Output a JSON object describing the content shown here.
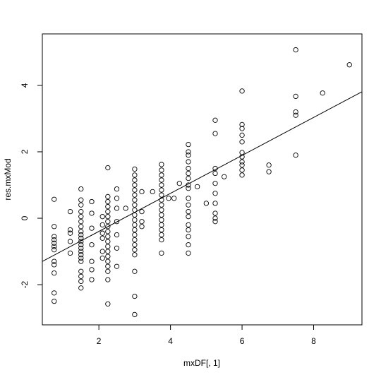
{
  "chart_data": {
    "type": "scatter",
    "x_label": "mxDF[, 1]",
    "y_label": "res.mxMod",
    "xlim": [
      0.42,
      9.35
    ],
    "ylim": [
      -3.21,
      5.55
    ],
    "xticks": [
      2,
      4,
      6,
      8
    ],
    "yticks": [
      -2,
      0,
      2,
      4
    ],
    "color": "#000000",
    "fit": {
      "intercept": -1.54,
      "slope": 0.572
    },
    "x": [
      0.75,
      0.75,
      0.75,
      0.75,
      0.75,
      0.75,
      0.75,
      0.75,
      0.75,
      0.75,
      0.75,
      0.75,
      1.2,
      1.2,
      1.2,
      1.2,
      1.2,
      1.5,
      1.5,
      1.5,
      1.5,
      1.5,
      1.5,
      1.5,
      1.5,
      1.5,
      1.5,
      1.5,
      1.5,
      1.5,
      1.5,
      1.5,
      1.5,
      1.5,
      1.5,
      1.5,
      1.5,
      1.5,
      1.8,
      1.8,
      1.8,
      1.8,
      1.8,
      1.8,
      1.8,
      2.1,
      2.1,
      2.1,
      2.1,
      2.1,
      2.1,
      2.25,
      2.25,
      2.25,
      2.25,
      2.25,
      2.25,
      2.25,
      2.25,
      2.25,
      2.25,
      2.25,
      2.25,
      2.25,
      2.25,
      2.25,
      2.25,
      2.25,
      2.25,
      2.25,
      2.5,
      2.5,
      2.5,
      2.5,
      2.5,
      2.5,
      2.5,
      2.75,
      3,
      3,
      3,
      3,
      3,
      3,
      3,
      3,
      3,
      3,
      3,
      3,
      3,
      3,
      3,
      3,
      3,
      3,
      3,
      3,
      3,
      3.2,
      3.2,
      3.2,
      3.2,
      3.5,
      3.75,
      3.75,
      3.75,
      3.75,
      3.75,
      3.75,
      3.75,
      3.75,
      3.75,
      3.75,
      3.75,
      3.75,
      3.75,
      3.75,
      3.75,
      3.75,
      3.75,
      3.95,
      4.1,
      4.25,
      4.5,
      4.5,
      4.5,
      4.5,
      4.5,
      4.5,
      4.5,
      4.5,
      4.5,
      4.5,
      4.5,
      4.5,
      4.5,
      4.5,
      4.5,
      4.5,
      4.5,
      4.5,
      4.75,
      5.0,
      5.25,
      5.25,
      5.25,
      5.25,
      5.25,
      5.25,
      5.25,
      5.25,
      5.25,
      5.25,
      5.5,
      6,
      6,
      6,
      6,
      6,
      6,
      6,
      6,
      6,
      6,
      6,
      6.75,
      6.75,
      7.5,
      7.5,
      7.5,
      7.5,
      7.5,
      8.25,
      9.0
    ],
    "values": [
      0.57,
      -0.25,
      -0.55,
      -0.65,
      -0.75,
      -0.85,
      -0.95,
      -1.3,
      -1.4,
      -1.65,
      -2.25,
      -2.5,
      0.2,
      -0.35,
      -0.45,
      -0.7,
      -1.05,
      0.88,
      0.55,
      0.4,
      0.2,
      0.05,
      -0.1,
      -0.25,
      -0.4,
      -0.5,
      -0.6,
      -0.7,
      -0.8,
      -0.9,
      -1.0,
      -1.1,
      -1.2,
      -1.3,
      -1.6,
      -1.75,
      -1.9,
      -2.1,
      0.5,
      0.15,
      -0.3,
      -0.8,
      -1.3,
      -1.55,
      -1.85,
      0.05,
      -0.2,
      -0.45,
      -0.6,
      -1.0,
      -1.2,
      1.52,
      0.65,
      0.5,
      0.35,
      0.2,
      0.05,
      -0.1,
      -0.25,
      -0.4,
      -0.55,
      -0.7,
      -0.85,
      -1.0,
      -1.15,
      -1.3,
      -1.45,
      -1.6,
      -1.85,
      -2.58,
      0.88,
      0.6,
      0.3,
      -0.1,
      -0.5,
      -0.9,
      -1.45,
      0.3,
      1.48,
      1.3,
      1.15,
      1.0,
      0.85,
      0.7,
      0.55,
      0.4,
      0.25,
      0.1,
      -0.05,
      -0.2,
      -0.35,
      -0.5,
      -0.65,
      -0.8,
      -0.95,
      -1.1,
      -1.6,
      -2.35,
      -2.9,
      0.8,
      -0.1,
      -0.25,
      0.2,
      0.8,
      1.62,
      1.45,
      1.3,
      1.15,
      1.0,
      0.85,
      0.7,
      0.55,
      0.4,
      0.25,
      0.1,
      -0.05,
      -0.2,
      -0.35,
      -0.5,
      -0.65,
      -1.05,
      0.6,
      0.6,
      1.05,
      2.22,
      2.0,
      1.9,
      1.7,
      1.5,
      1.35,
      1.2,
      1.0,
      0.9,
      0.6,
      0.4,
      0.2,
      0.05,
      -0.2,
      -0.35,
      -0.55,
      -0.8,
      -1.05,
      0.95,
      0.45,
      2.95,
      2.55,
      1.5,
      1.35,
      1.05,
      0.75,
      0.45,
      0.15,
      0.0,
      -0.1,
      1.25,
      3.83,
      2.82,
      2.7,
      2.5,
      2.3,
      1.98,
      1.85,
      1.7,
      1.6,
      1.45,
      1.3,
      1.6,
      1.4,
      5.07,
      3.67,
      3.2,
      3.1,
      1.9,
      3.77,
      4.62
    ]
  }
}
